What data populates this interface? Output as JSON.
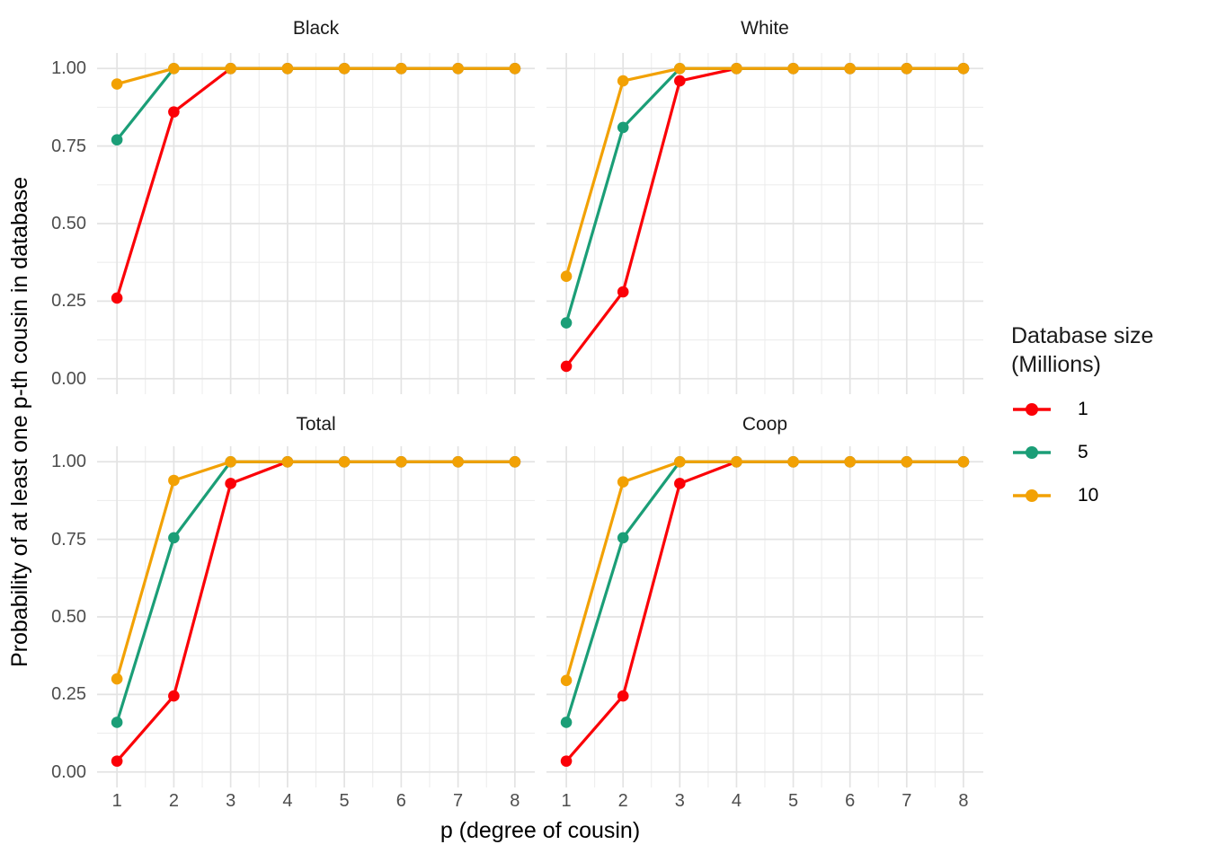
{
  "chart_data": {
    "type": "line",
    "title": "",
    "xlabel": "p (degree of cousin)",
    "ylabel": "Probability of at least one p-th cousin in database",
    "x": [
      1,
      2,
      3,
      4,
      5,
      6,
      7,
      8
    ],
    "x_ticks": [
      "1",
      "2",
      "3",
      "4",
      "5",
      "6",
      "7",
      "8"
    ],
    "y_ticks": [
      "0.00",
      "0.25",
      "0.50",
      "0.75",
      "1.00"
    ],
    "y_major": [
      0,
      0.25,
      0.5,
      0.75,
      1
    ],
    "xlim": [
      1,
      8
    ],
    "ylim": [
      0,
      1
    ],
    "grid": "major and minor, light gray on white",
    "legend_position": "right",
    "facets": [
      {
        "title": "Black",
        "series": [
          {
            "name": "1",
            "values": [
              0.26,
              0.86,
              1,
              1,
              1,
              1,
              1,
              1
            ]
          },
          {
            "name": "5",
            "values": [
              0.77,
              1,
              1,
              1,
              1,
              1,
              1,
              1
            ]
          },
          {
            "name": "10",
            "values": [
              0.95,
              1,
              1,
              1,
              1,
              1,
              1,
              1
            ]
          }
        ]
      },
      {
        "title": "White",
        "series": [
          {
            "name": "1",
            "values": [
              0.04,
              0.28,
              0.96,
              1,
              1,
              1,
              1,
              1
            ]
          },
          {
            "name": "5",
            "values": [
              0.18,
              0.81,
              1,
              1,
              1,
              1,
              1,
              1
            ]
          },
          {
            "name": "10",
            "values": [
              0.33,
              0.96,
              1,
              1,
              1,
              1,
              1,
              1
            ]
          }
        ]
      },
      {
        "title": "Total",
        "series": [
          {
            "name": "1",
            "values": [
              0.035,
              0.245,
              0.93,
              1,
              1,
              1,
              1,
              1
            ]
          },
          {
            "name": "5",
            "values": [
              0.16,
              0.755,
              1,
              1,
              1,
              1,
              1,
              1
            ]
          },
          {
            "name": "10",
            "values": [
              0.3,
              0.94,
              1,
              1,
              1,
              1,
              1,
              1
            ]
          }
        ]
      },
      {
        "title": "Coop",
        "series": [
          {
            "name": "1",
            "values": [
              0.035,
              0.245,
              0.93,
              1,
              1,
              1,
              1,
              1
            ]
          },
          {
            "name": "5",
            "values": [
              0.16,
              0.755,
              1,
              1,
              1,
              1,
              1,
              1
            ]
          },
          {
            "name": "10",
            "values": [
              0.295,
              0.935,
              1,
              1,
              1,
              1,
              1,
              1
            ]
          }
        ]
      }
    ],
    "series_colors": {
      "1": "#FB0007",
      "5": "#1B9E77",
      "10": "#F2A104"
    }
  },
  "legend": {
    "title_lines": [
      "Database size",
      "(Millions)"
    ],
    "items": [
      {
        "label": "1",
        "color": "#FB0007"
      },
      {
        "label": "5",
        "color": "#1B9E77"
      },
      {
        "label": "10",
        "color": "#F2A104"
      }
    ]
  },
  "styles": {
    "background": "#FFFFFF",
    "grid_major_color": "#E3E3E3",
    "grid_minor_color": "#EDEDED",
    "tick_label_color": "#4D4D4D",
    "strip_text_color": "#1A1A1A",
    "axis_title_color": "#000000"
  }
}
